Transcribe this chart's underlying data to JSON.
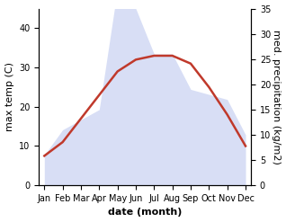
{
  "months": [
    "Jan",
    "Feb",
    "Mar",
    "Apr",
    "May",
    "Jun",
    "Jul",
    "Aug",
    "Sep",
    "Oct",
    "Nov",
    "Dec"
  ],
  "month_indices": [
    0,
    1,
    2,
    3,
    4,
    5,
    6,
    7,
    8,
    9,
    10,
    11
  ],
  "max_temp": [
    7.5,
    11,
    17,
    23,
    29,
    32,
    33,
    33,
    31,
    25,
    18,
    10
  ],
  "precipitation": [
    6,
    11,
    13,
    15,
    39,
    35,
    26,
    26,
    19,
    18,
    17,
    10
  ],
  "temp_ylim": [
    0,
    45
  ],
  "precip_ylim": [
    0,
    35
  ],
  "temp_yticks": [
    0,
    10,
    20,
    30,
    40
  ],
  "precip_yticks": [
    0,
    5,
    10,
    15,
    20,
    25,
    30,
    35
  ],
  "temp_color": "#c0392b",
  "precip_fill_color": "#b8c4ee",
  "xlabel": "date (month)",
  "ylabel_left": "max temp (C)",
  "ylabel_right": "med. precipitation (kg/m2)",
  "background_color": "#ffffff",
  "axis_fontsize": 8,
  "tick_fontsize": 7,
  "label_fontsize": 8
}
